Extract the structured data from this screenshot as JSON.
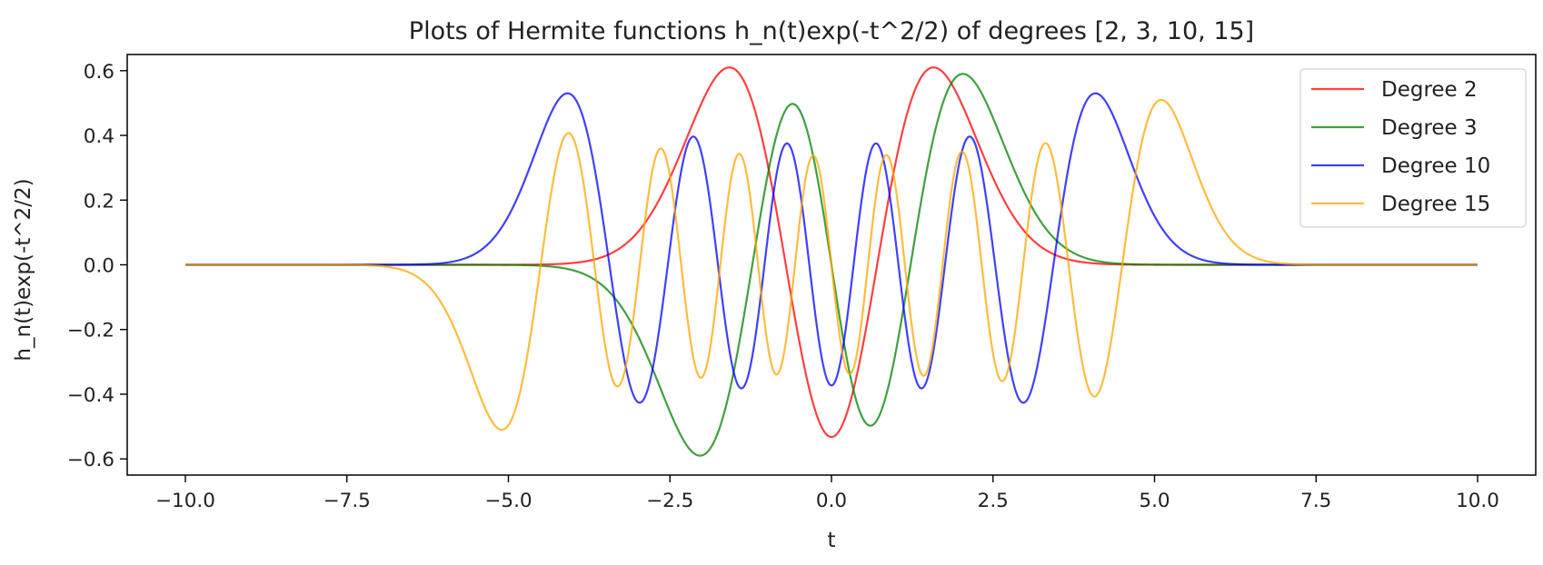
{
  "chart_data": {
    "type": "line",
    "title": "Plots of Hermite functions h_n(t)exp(-t^2/2) of degrees [2, 3, 10, 15]",
    "xlabel": "t",
    "ylabel": "h_n(t)exp(-t^2/2)",
    "xlim": [
      -10.9,
      10.9
    ],
    "ylim": [
      -0.65,
      0.65
    ],
    "x_range": [
      -10.0,
      10.0
    ],
    "x_ticks": [
      -10.0,
      -7.5,
      -5.0,
      -2.5,
      0.0,
      2.5,
      5.0,
      7.5,
      10.0
    ],
    "x_tick_labels": [
      "−10.0",
      "−7.5",
      "−5.0",
      "−2.5",
      "0.0",
      "2.5",
      "5.0",
      "7.5",
      "10.0"
    ],
    "y_ticks": [
      -0.6,
      -0.4,
      -0.2,
      0.0,
      0.2,
      0.4,
      0.6
    ],
    "y_tick_labels": [
      "−0.6",
      "−0.4",
      "−0.2",
      "0.0",
      "0.2",
      "0.4",
      "0.6"
    ],
    "grid": false,
    "legend_position": "top-right",
    "series": [
      {
        "name": "Degree 2",
        "degree": 2,
        "color": "#ff0000",
        "extrema_y": [
          0.61,
          -0.53
        ]
      },
      {
        "name": "Degree 3",
        "degree": 3,
        "color": "#008000",
        "extrema_y": [
          0.59,
          -0.59
        ]
      },
      {
        "name": "Degree 10",
        "degree": 10,
        "color": "#0000ff",
        "extrema_y": [
          0.53,
          -0.43
        ]
      },
      {
        "name": "Degree 15",
        "degree": 15,
        "color": "#ffa500",
        "extrema_y": [
          0.51,
          -0.51
        ]
      }
    ]
  }
}
